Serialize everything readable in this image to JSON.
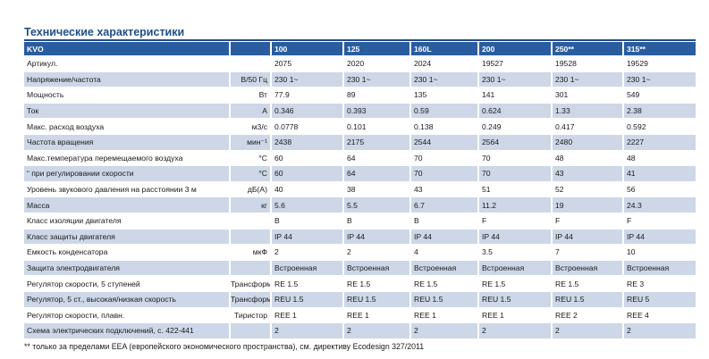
{
  "title": "Технические характеристики",
  "table": {
    "header": [
      "KVO",
      "",
      "100",
      "125",
      "160L",
      "200",
      "250**",
      "315**"
    ],
    "rows": [
      {
        "label": "Артикул.",
        "unit": "",
        "values": [
          "2075",
          "2020",
          "2024",
          "19527",
          "19528",
          "19529"
        ]
      },
      {
        "label": "Напряжение/частота",
        "unit": "В/50 Гц",
        "values": [
          "230 1~",
          "230 1~",
          "230 1~",
          "230 1~",
          "230 1~",
          "230 1~"
        ]
      },
      {
        "label": "Мощность",
        "unit": "Вт",
        "values": [
          "77.9",
          "89",
          "135",
          "141",
          "301",
          "549"
        ]
      },
      {
        "label": "Ток",
        "unit": "А",
        "values": [
          "0.346",
          "0.393",
          "0.59",
          "0.624",
          "1.33",
          "2.38"
        ]
      },
      {
        "label": "Макс. расход воздуха",
        "unit": "м3/с",
        "values": [
          "0.0778",
          "0.101",
          "0.138",
          "0.249",
          "0.417",
          "0.592"
        ]
      },
      {
        "label": "Частота вращения",
        "unit": "мин⁻¹",
        "values": [
          "2438",
          "2175",
          "2544",
          "2564",
          "2480",
          "2227"
        ]
      },
      {
        "label": "Макс.температура перемещаемого воздуха",
        "unit": "°С",
        "values": [
          "60",
          "64",
          "70",
          "70",
          "48",
          "48"
        ]
      },
      {
        "label": "“ при регулировании скорости",
        "unit": "°С",
        "values": [
          "60",
          "64",
          "70",
          "70",
          "43",
          "41"
        ]
      },
      {
        "label": "Уровень звукового давления на расстоянии 3 м",
        "unit": "дБ(А)",
        "values": [
          "40",
          "38",
          "43",
          "51",
          "52",
          "56"
        ]
      },
      {
        "label": "Масса",
        "unit": "кг",
        "values": [
          "5.6",
          "5.5",
          "6.7",
          "11.2",
          "19",
          "24.3"
        ]
      },
      {
        "label": "Класс изоляции двигателя",
        "unit": "",
        "values": [
          "B",
          "B",
          "B",
          "F",
          "F",
          "F"
        ]
      },
      {
        "label": "Класс защиты двигателя",
        "unit": "",
        "values": [
          "IP 44",
          "IP 44",
          "IP 44",
          "IP 44",
          "IP 44",
          "IP 44"
        ]
      },
      {
        "label": "Емкость конденсатора",
        "unit": "мкФ",
        "values": [
          "2",
          "2",
          "4",
          "3.5",
          "7",
          "10"
        ]
      },
      {
        "label": "Защита электродвигателя",
        "unit": "",
        "values": [
          "Встроенная",
          "Встроенная",
          "Встроенная",
          "Встроенная",
          "Встроенная",
          "Встроенная"
        ]
      },
      {
        "label": "Регулятор скорости, 5 ступеней",
        "unit": "Трансформатор",
        "values": [
          "RE 1.5",
          "RE 1.5",
          "RE 1.5",
          "RE 1.5",
          "RE 1.5",
          "RE 3"
        ]
      },
      {
        "label": "Регулятор, 5 ст., высокая/низкая скорость",
        "unit": "Трансформатор",
        "values": [
          "REU 1.5",
          "REU 1.5",
          "REU 1.5",
          "REU 1.5",
          "REU 1.5",
          "REU 5"
        ]
      },
      {
        "label": "Регулятор скорости, плавн.",
        "unit": "Тиристор",
        "values": [
          "REE 1",
          "REE 1",
          "REE 1",
          "REE 1",
          "REE 2",
          "REE 4"
        ]
      },
      {
        "label": "Схема электрических подключений, с. 422-441",
        "unit": "",
        "values": [
          "2",
          "2",
          "2",
          "2",
          "2",
          "2"
        ]
      }
    ]
  },
  "footnote": "** только за пределами EEA (европейского экономического пространства), см. директиву Ecodesign 327/2011"
}
